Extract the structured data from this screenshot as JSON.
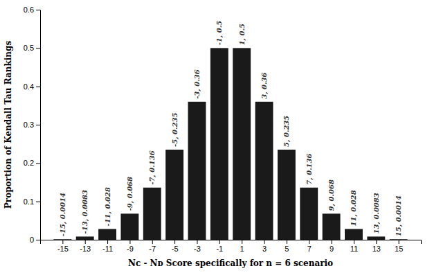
{
  "chart_data": {
    "type": "bar",
    "x": [
      -15,
      -13,
      -11,
      -9,
      -7,
      -5,
      -3,
      -1,
      1,
      3,
      5,
      7,
      9,
      11,
      13,
      15
    ],
    "values": [
      0.0014,
      0.0083,
      0.028,
      0.068,
      0.136,
      0.235,
      0.36,
      0.5,
      0.5,
      0.36,
      0.235,
      0.136,
      0.068,
      0.028,
      0.0083,
      0.0014
    ],
    "color": "#1a1a1a",
    "xlabel": "Nᴄ - Nᴅ Score specifically for n = 6 scenario",
    "ylabel": "Proportion of Kendall Tau Rankings",
    "xlim": [
      -17,
      17
    ],
    "xticks": [
      -15,
      -13,
      -11,
      -9,
      -7,
      -5,
      -3,
      -1,
      1,
      3,
      5,
      7,
      9,
      11,
      13,
      15
    ],
    "ylim": [
      0,
      0.6
    ],
    "yticks": [
      0,
      0.1,
      0.2,
      0.3,
      0.4,
      0.5,
      0.6
    ],
    "annotations": [
      {
        "text": "-15, 0.0014",
        "x": -15,
        "y": 0.0014
      },
      {
        "text": "-13, 0.0083",
        "x": -13,
        "y": 0.0083
      },
      {
        "text": "-11, 0.028",
        "x": -11,
        "y": 0.028
      },
      {
        "text": "-9, 0.068",
        "x": -9,
        "y": 0.068
      },
      {
        "text": "-7, 0.136",
        "x": -7,
        "y": 0.136
      },
      {
        "text": "-5, 0.235",
        "x": -5,
        "y": 0.235
      },
      {
        "text": "-3, 0.36",
        "x": -3,
        "y": 0.36
      },
      {
        "text": "-1, 0.5",
        "x": -1,
        "y": 0.5
      },
      {
        "text": "1, 0.5",
        "x": 1,
        "y": 0.5
      },
      {
        "text": "3, 0.36",
        "x": 3,
        "y": 0.36
      },
      {
        "text": "5, 0.235",
        "x": 5,
        "y": 0.235
      },
      {
        "text": "7, 0.136",
        "x": 7,
        "y": 0.136
      },
      {
        "text": "9, 0.068",
        "x": 9,
        "y": 0.068
      },
      {
        "text": "11, 0.028",
        "x": 11,
        "y": 0.028
      },
      {
        "text": "13, 0.0083",
        "x": 13,
        "y": 0.0083
      },
      {
        "text": "15, 0.0014",
        "x": 15,
        "y": 0.0014
      }
    ]
  }
}
